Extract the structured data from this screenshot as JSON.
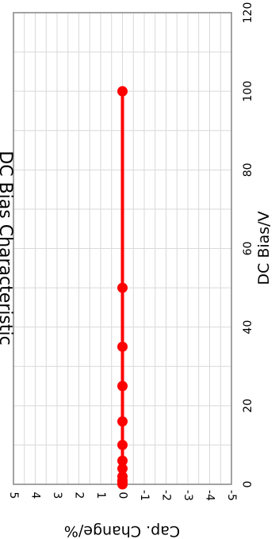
{
  "chart_data": {
    "type": "line",
    "title": "DC Bias Characteristic",
    "xlabel": "DC Bias/V",
    "ylabel": "Cap. Change/%",
    "xlim": [
      0,
      120
    ],
    "ylim": [
      -5,
      5
    ],
    "x_ticks": [
      "0",
      "20",
      "40",
      "60",
      "80",
      "100",
      "120"
    ],
    "y_ticks": [
      "5",
      "4",
      "3",
      "2",
      "1",
      "0",
      "-1",
      "-2",
      "-3",
      "-4",
      "-5"
    ],
    "x_tick_values": [
      0,
      20,
      40,
      60,
      80,
      100,
      120
    ],
    "y_tick_values": [
      5,
      4,
      3,
      2,
      1,
      0,
      -1,
      -2,
      -3,
      -4,
      -5
    ],
    "x_minor_step": 10,
    "y_minor_step": 0.5,
    "grid": true,
    "orientation": "rotated 90 degrees clockwise",
    "series": [
      {
        "color": "#ff0000",
        "x": [
          0,
          0.5,
          1,
          2,
          4,
          6,
          10,
          16,
          25,
          35,
          50,
          100
        ],
        "y": [
          0,
          0,
          0,
          0,
          0,
          0,
          0,
          0,
          0,
          0,
          0,
          0
        ]
      }
    ]
  }
}
